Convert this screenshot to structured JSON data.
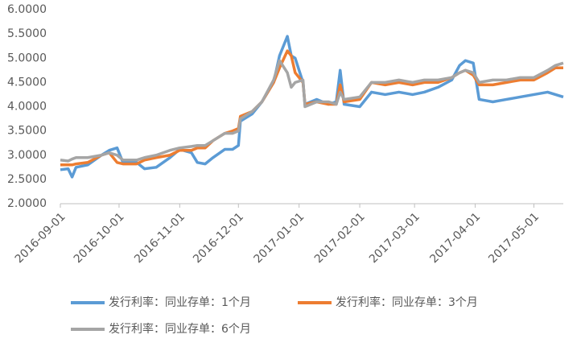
{
  "chart_data": {
    "type": "line",
    "x": [
      "2016-09-01",
      "2016-09-05",
      "2016-09-07",
      "2016-09-09",
      "2016-09-15",
      "2016-09-22",
      "2016-09-26",
      "2016-09-30",
      "2016-10-03",
      "2016-10-10",
      "2016-10-14",
      "2016-10-20",
      "2016-10-27",
      "2016-11-01",
      "2016-11-07",
      "2016-11-10",
      "2016-11-14",
      "2016-11-18",
      "2016-11-24",
      "2016-11-28",
      "2016-12-01",
      "2016-12-02",
      "2016-12-08",
      "2016-12-13",
      "2016-12-19",
      "2016-12-22",
      "2016-12-26",
      "2016-12-28",
      "2016-12-30",
      "2017-01-03",
      "2017-01-04",
      "2017-01-10",
      "2017-01-16",
      "2017-01-20",
      "2017-01-22",
      "2017-01-24",
      "2017-02-01",
      "2017-02-07",
      "2017-02-14",
      "2017-02-21",
      "2017-02-28",
      "2017-03-06",
      "2017-03-13",
      "2017-03-20",
      "2017-03-24",
      "2017-03-27",
      "2017-03-31",
      "2017-04-03",
      "2017-04-10",
      "2017-04-17",
      "2017-04-24",
      "2017-05-01",
      "2017-05-08",
      "2017-05-12",
      "2017-05-16"
    ],
    "series": [
      {
        "name": "发行利率：同业存单：1个月",
        "color": "#5b9bd5",
        "values": [
          2.7,
          2.72,
          2.55,
          2.75,
          2.8,
          3.0,
          3.1,
          3.15,
          2.85,
          2.85,
          2.72,
          2.75,
          2.95,
          3.12,
          3.05,
          2.85,
          2.82,
          2.95,
          3.12,
          3.12,
          3.2,
          3.7,
          3.85,
          4.1,
          4.5,
          5.05,
          5.45,
          5.05,
          5.0,
          4.5,
          4.05,
          4.15,
          4.05,
          4.1,
          4.75,
          4.05,
          4.0,
          4.3,
          4.25,
          4.3,
          4.25,
          4.3,
          4.4,
          4.55,
          4.85,
          4.95,
          4.9,
          4.15,
          4.1,
          4.15,
          4.2,
          4.25,
          4.3,
          4.25,
          4.2
        ]
      },
      {
        "name": "发行利率：同业存单：3个月",
        "color": "#ed7d31",
        "values": [
          2.8,
          2.8,
          2.8,
          2.82,
          2.85,
          3.0,
          3.05,
          2.85,
          2.82,
          2.82,
          2.9,
          2.95,
          3.0,
          3.1,
          3.1,
          3.15,
          3.15,
          3.3,
          3.45,
          3.5,
          3.55,
          3.8,
          3.9,
          4.1,
          4.5,
          4.8,
          5.15,
          5.05,
          4.7,
          4.5,
          4.05,
          4.1,
          4.05,
          4.05,
          4.45,
          4.1,
          4.15,
          4.5,
          4.45,
          4.5,
          4.45,
          4.5,
          4.5,
          4.6,
          4.7,
          4.75,
          4.65,
          4.45,
          4.45,
          4.5,
          4.55,
          4.55,
          4.7,
          4.8,
          4.8
        ]
      },
      {
        "name": "发行利率：同业存单：6个月",
        "color": "#a5a5a5",
        "values": [
          2.9,
          2.88,
          2.92,
          2.95,
          2.95,
          3.0,
          3.05,
          3.0,
          2.9,
          2.9,
          2.95,
          3.0,
          3.1,
          3.15,
          3.18,
          3.2,
          3.2,
          3.3,
          3.45,
          3.45,
          3.5,
          3.75,
          3.9,
          4.1,
          4.55,
          4.95,
          4.7,
          4.4,
          4.5,
          4.55,
          4.0,
          4.1,
          4.1,
          4.05,
          4.3,
          4.15,
          4.2,
          4.5,
          4.5,
          4.55,
          4.5,
          4.55,
          4.55,
          4.6,
          4.7,
          4.75,
          4.7,
          4.5,
          4.55,
          4.55,
          4.6,
          4.6,
          4.75,
          4.85,
          4.9
        ]
      }
    ],
    "xlim": [
      "2016-09-01",
      "2017-05-16"
    ],
    "xticks": [
      "2016-09-01",
      "2016-10-01",
      "2016-11-01",
      "2016-12-01",
      "2017-01-01",
      "2017-02-01",
      "2017-03-01",
      "2017-04-01",
      "2017-05-01"
    ],
    "ylim": [
      2,
      6
    ],
    "yticks": [
      {
        "value": 2,
        "label": "2.0000"
      },
      {
        "value": 2.5,
        "label": "2.5000"
      },
      {
        "value": 3,
        "label": "3.0000"
      },
      {
        "value": 3.5,
        "label": "3.5000"
      },
      {
        "value": 4,
        "label": "4.0000"
      },
      {
        "value": 4.5,
        "label": "4.5000"
      },
      {
        "value": 5,
        "label": "5.0000"
      },
      {
        "value": 5.5,
        "label": "5.5000"
      },
      {
        "value": 6,
        "label": "6.0000"
      }
    ],
    "grid": false
  }
}
